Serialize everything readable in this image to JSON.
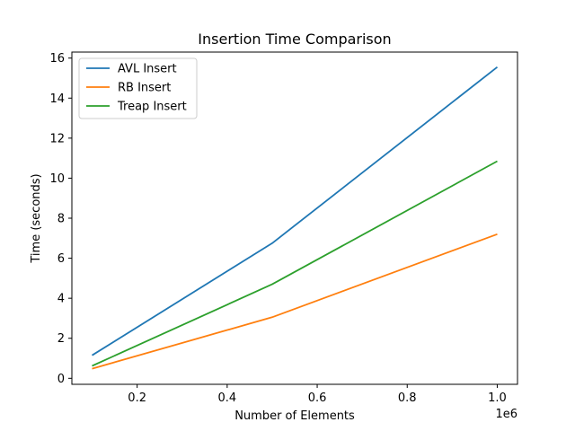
{
  "chart_data": {
    "type": "line",
    "title": "Insertion Time Comparison",
    "xlabel": "Number of Elements",
    "ylabel": "Time (seconds)",
    "x_offset_text": "1e6",
    "x": [
      100000,
      500000,
      1000000
    ],
    "xlim": [
      55000,
      1045000
    ],
    "ylim": [
      -0.3,
      16.3
    ],
    "xticks": [
      200000,
      400000,
      600000,
      800000,
      1000000
    ],
    "xtick_labels": [
      "0.2",
      "0.4",
      "0.6",
      "0.8",
      "1.0"
    ],
    "yticks": [
      0,
      2,
      4,
      6,
      8,
      10,
      12,
      14,
      16
    ],
    "ytick_labels": [
      "0",
      "2",
      "4",
      "6",
      "8",
      "10",
      "12",
      "14",
      "16"
    ],
    "grid": false,
    "legend_position": "top-left",
    "series": [
      {
        "name": "AVL Insert",
        "color": "#1f77b4",
        "values": [
          1.15,
          6.75,
          15.55
        ]
      },
      {
        "name": "RB Insert",
        "color": "#ff7f0e",
        "values": [
          0.48,
          3.05,
          7.2
        ]
      },
      {
        "name": "Treap Insert",
        "color": "#2ca02c",
        "values": [
          0.62,
          4.7,
          10.85
        ]
      }
    ]
  }
}
